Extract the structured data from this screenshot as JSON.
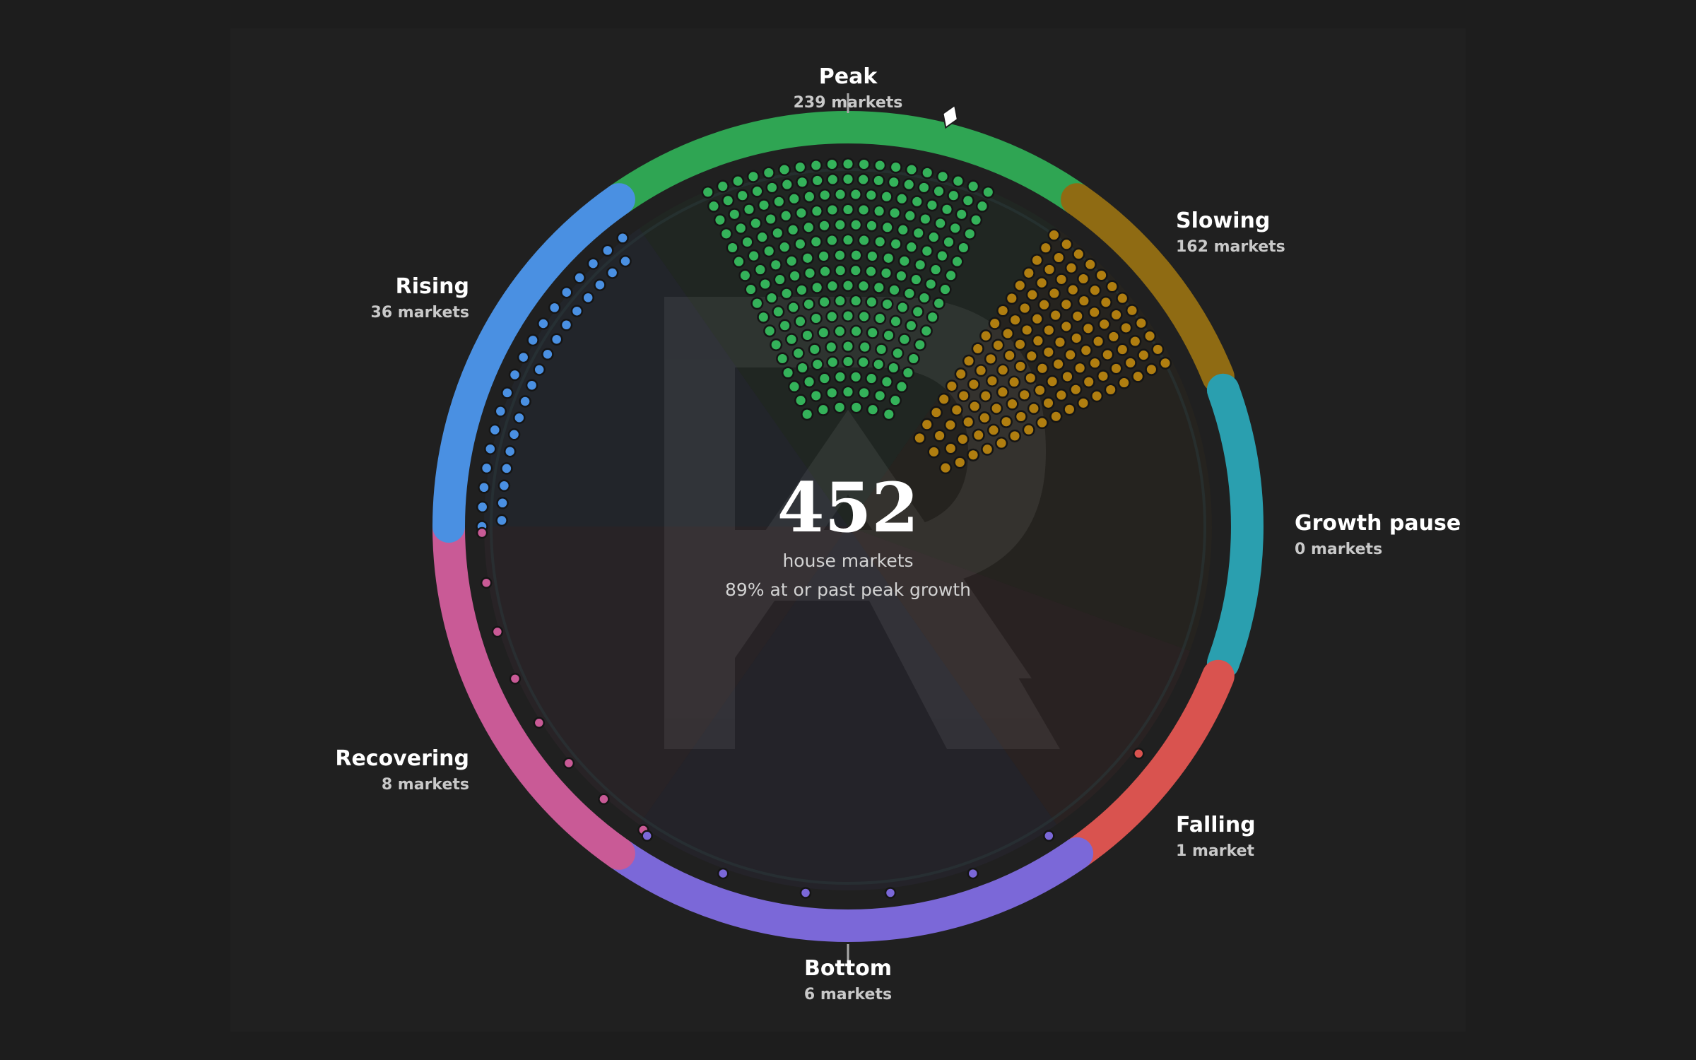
{
  "chart_data": {
    "type": "radial-dot-cycle",
    "total": "452",
    "total_label": "house markets",
    "summary": "89% at or past peak growth",
    "segments": [
      {
        "key": "peak",
        "name": "Peak",
        "count": 239,
        "count_label": "239 markets",
        "color": "#2fa553"
      },
      {
        "key": "slowing",
        "name": "Slowing",
        "count": 162,
        "count_label": "162 markets",
        "color": "#8f6b13"
      },
      {
        "key": "pause",
        "name": "Growth pause",
        "count": 0,
        "count_label": "0 markets",
        "color": "#2a9faf"
      },
      {
        "key": "falling",
        "name": "Falling",
        "count": 1,
        "count_label": "1 market",
        "color": "#d9534f"
      },
      {
        "key": "bottom",
        "name": "Bottom",
        "count": 6,
        "count_label": "6 markets",
        "color": "#7b68d8"
      },
      {
        "key": "recovering",
        "name": "Recovering",
        "count": 8,
        "count_label": "8 markets",
        "color": "#c95a96"
      },
      {
        "key": "rising",
        "name": "Rising",
        "count": 36,
        "count_label": "36 markets",
        "color": "#4a90e2"
      }
    ],
    "dot_colors": {
      "peak": "#34b25a",
      "slowing": "#b07e10"
    },
    "current_marker": "peak"
  }
}
